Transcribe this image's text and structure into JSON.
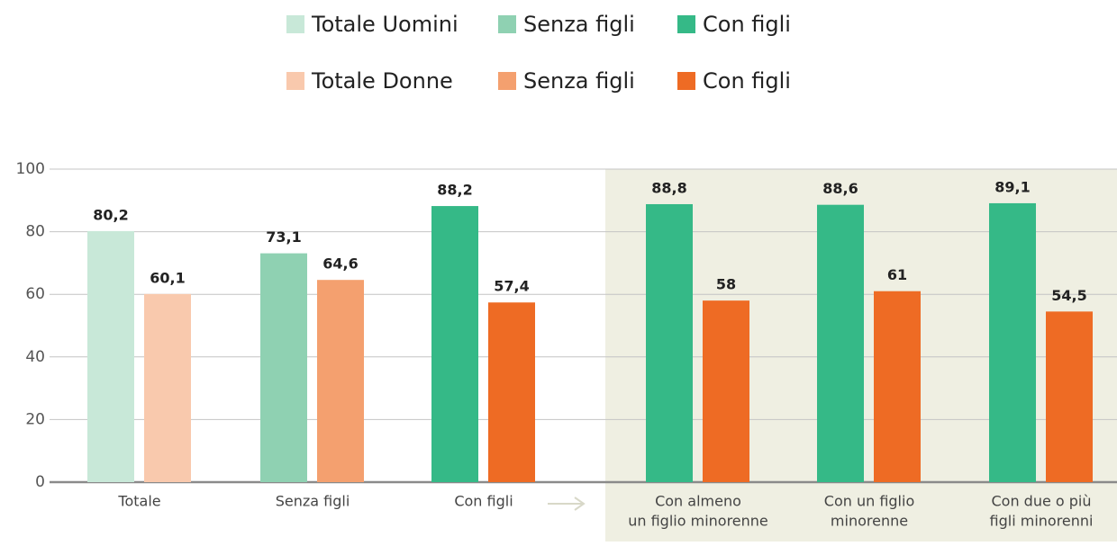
{
  "chart_data": {
    "type": "bar",
    "legend": [
      {
        "name": "Totale Uomini",
        "color": "#c8e8d8"
      },
      {
        "name": "Senza figli",
        "color": "#8fd1b2"
      },
      {
        "name": "Con figli",
        "color": "#35b987"
      },
      {
        "name": "Totale Donne",
        "color": "#f9c9ad"
      },
      {
        "name": "Senza figli",
        "color": "#f4a06f"
      },
      {
        "name": "Con figli",
        "color": "#ee6b24"
      }
    ],
    "categories": [
      [
        "Totale"
      ],
      [
        "Senza figli"
      ],
      [
        "Con figli"
      ],
      [
        "Con almeno",
        "un figlio minorenne"
      ],
      [
        "Con un figlio",
        "minorenne"
      ],
      [
        "Con due o più",
        "figli minorenni"
      ]
    ],
    "series": [
      {
        "values": [
          80.2,
          73.1,
          88.2,
          88.8,
          88.6,
          89.1
        ],
        "value_labels": [
          "80,2",
          "73,1",
          "88,2",
          "88,8",
          "88,6",
          "89,1"
        ],
        "colors": [
          "#c8e8d8",
          "#8fd1b2",
          "#35b987",
          "#35b987",
          "#35b987",
          "#35b987"
        ]
      },
      {
        "values": [
          60.1,
          64.6,
          57.4,
          58,
          61,
          54.5
        ],
        "value_labels": [
          "60,1",
          "64,6",
          "57,4",
          "58",
          "61",
          "54,5"
        ],
        "colors": [
          "#f9c9ad",
          "#f4a06f",
          "#ee6b24",
          "#ee6b24",
          "#ee6b24",
          "#ee6b24"
        ]
      }
    ],
    "ylim": [
      0,
      100
    ],
    "yticks": [
      0,
      20,
      40,
      60,
      80,
      100
    ],
    "grid": true
  }
}
